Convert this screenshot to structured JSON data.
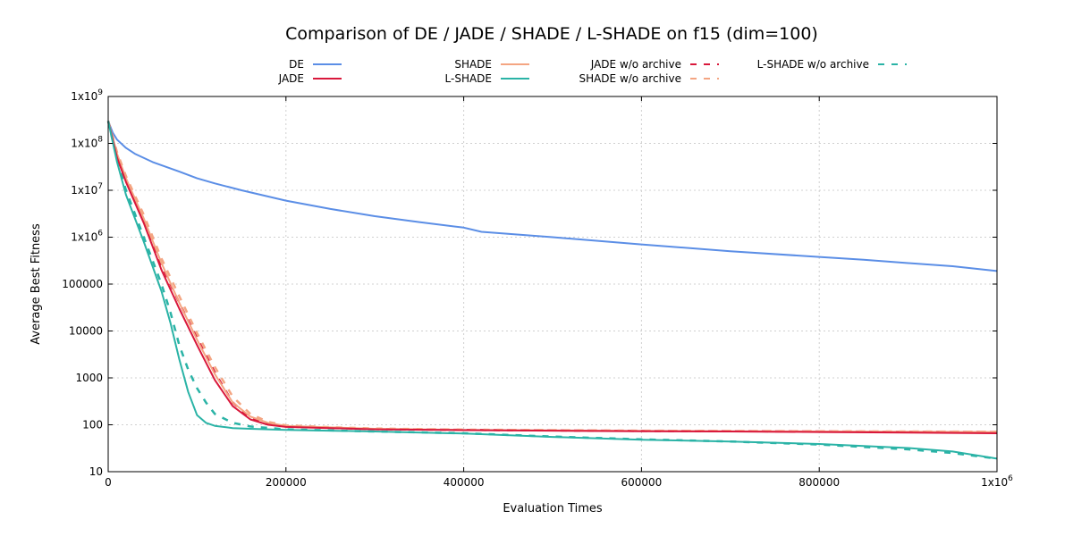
{
  "chart_data": {
    "type": "line",
    "title": "Comparison of DE / JADE / SHADE / L-SHADE on f15 (dim=100)",
    "xlabel": "Evaluation Times",
    "ylabel": "Average Best Fitness",
    "yscale": "log",
    "xlim": [
      0,
      1000000
    ],
    "ylim": [
      10,
      1000000000
    ],
    "grid": true,
    "legend_position": "top",
    "x_ticks": [
      {
        "value": 0,
        "label": "0"
      },
      {
        "value": 200000,
        "label": "200000"
      },
      {
        "value": 400000,
        "label": "400000"
      },
      {
        "value": 600000,
        "label": "600000"
      },
      {
        "value": 800000,
        "label": "800000"
      },
      {
        "value": 1000000,
        "label": "1x10",
        "sup": "6"
      }
    ],
    "y_ticks": [
      {
        "value": 10,
        "label": "10"
      },
      {
        "value": 100,
        "label": "100"
      },
      {
        "value": 1000,
        "label": "1000"
      },
      {
        "value": 10000,
        "label": "10000"
      },
      {
        "value": 100000,
        "label": "100000"
      },
      {
        "value": 1000000,
        "label": "1x10",
        "sup": "6"
      },
      {
        "value": 10000000,
        "label": "1x10",
        "sup": "7"
      },
      {
        "value": 100000000,
        "label": "1x10",
        "sup": "8"
      },
      {
        "value": 1000000000,
        "label": "1x10",
        "sup": "9"
      }
    ],
    "series": [
      {
        "name": "DE",
        "color": "#5b8ee6",
        "dash": "solid",
        "x": [
          0,
          5000,
          10000,
          20000,
          30000,
          50000,
          80000,
          100000,
          120000,
          150000,
          200000,
          250000,
          300000,
          350000,
          400000,
          420000,
          500000,
          600000,
          700000,
          800000,
          850000,
          900000,
          950000,
          1000000
        ],
        "y": [
          300000000,
          170000000,
          120000000,
          80000000,
          60000000,
          40000000,
          25000000,
          18000000,
          14000000,
          10000000,
          6000000,
          4000000,
          2800000,
          2100000,
          1600000,
          1300000,
          1000000,
          700000,
          500000,
          380000,
          330000,
          280000,
          240000,
          190000
        ]
      },
      {
        "name": "JADE",
        "color": "#d9183b",
        "dash": "solid",
        "x": [
          0,
          10000,
          20000,
          40000,
          60000,
          80000,
          100000,
          120000,
          140000,
          160000,
          180000,
          200000,
          250000,
          300000,
          400000,
          500000,
          600000,
          700000,
          800000,
          900000,
          1000000
        ],
        "y": [
          300000000,
          50000000,
          15000000,
          2000000,
          200000,
          30000,
          5000,
          900,
          250,
          130,
          100,
          90,
          85,
          80,
          77,
          75,
          73,
          72,
          70,
          68,
          66
        ]
      },
      {
        "name": "SHADE",
        "color": "#f4a582",
        "dash": "solid",
        "x": [
          0,
          10000,
          20000,
          40000,
          60000,
          80000,
          100000,
          120000,
          140000,
          160000,
          180000,
          200000,
          250000,
          300000,
          400000,
          500000,
          600000,
          700000,
          800000,
          900000,
          1000000
        ],
        "y": [
          300000000,
          60000000,
          18000000,
          2500000,
          280000,
          40000,
          6500,
          1200,
          300,
          150,
          110,
          95,
          88,
          82,
          78,
          76,
          74,
          73,
          72,
          71,
          70
        ]
      },
      {
        "name": "L-SHADE",
        "color": "#2ab3a6",
        "dash": "solid",
        "x": [
          0,
          10000,
          20000,
          40000,
          60000,
          70000,
          80000,
          90000,
          100000,
          110000,
          120000,
          140000,
          160000,
          200000,
          300000,
          400000,
          500000,
          600000,
          700000,
          800000,
          900000,
          950000,
          1000000
        ],
        "y": [
          300000000,
          40000000,
          8000000,
          800000,
          70000,
          15000,
          2500,
          500,
          160,
          110,
          95,
          85,
          82,
          78,
          72,
          65,
          55,
          48,
          44,
          39,
          32,
          27,
          19
        ]
      },
      {
        "name": "JADE w/o archive",
        "color": "#d9183b",
        "dash": "dashed",
        "x": [
          0,
          10000,
          20000,
          40000,
          60000,
          80000,
          100000,
          120000,
          140000,
          160000,
          180000,
          200000,
          250000,
          300000,
          400000,
          500000,
          600000,
          700000,
          800000,
          900000,
          1000000
        ],
        "y": [
          300000000,
          55000000,
          17000000,
          2300000,
          250000,
          40000,
          7000,
          1300,
          300,
          140,
          105,
          92,
          86,
          81,
          78,
          76,
          74,
          73,
          72,
          71,
          70
        ]
      },
      {
        "name": "SHADE w/o archive",
        "color": "#f4a582",
        "dash": "dashed",
        "x": [
          0,
          10000,
          20000,
          40000,
          60000,
          80000,
          100000,
          120000,
          140000,
          160000,
          180000,
          200000,
          250000,
          300000,
          400000,
          500000,
          600000,
          700000,
          800000,
          900000,
          1000000
        ],
        "y": [
          300000000,
          65000000,
          20000000,
          3000000,
          350000,
          55000,
          9000,
          1700,
          400,
          170,
          115,
          97,
          89,
          83,
          79,
          77,
          75,
          74,
          73,
          72,
          71
        ]
      },
      {
        "name": "L-SHADE w/o archive",
        "color": "#2ab3a6",
        "dash": "dashed",
        "x": [
          0,
          10000,
          20000,
          40000,
          60000,
          70000,
          80000,
          90000,
          100000,
          110000,
          120000,
          140000,
          160000,
          200000,
          300000,
          400000,
          500000,
          600000,
          700000,
          800000,
          900000,
          950000,
          1000000
        ],
        "y": [
          300000000,
          45000000,
          10000000,
          1000000,
          100000,
          25000,
          5000,
          1500,
          600,
          300,
          170,
          110,
          92,
          80,
          72,
          66,
          56,
          49,
          44,
          38,
          30,
          25,
          19
        ]
      }
    ]
  }
}
